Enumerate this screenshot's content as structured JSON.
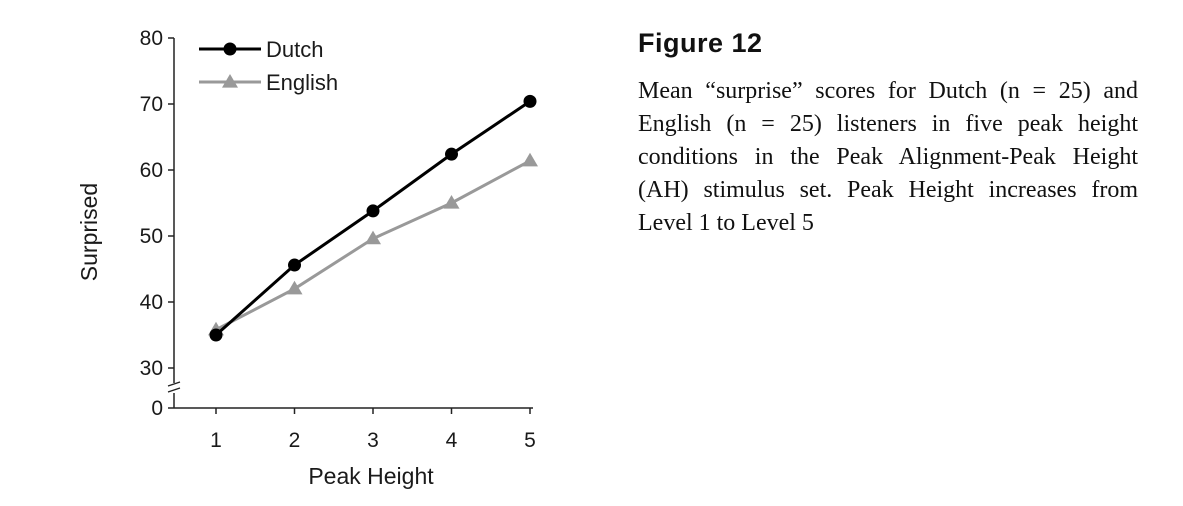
{
  "chart_data": {
    "type": "line",
    "xlabel": "Peak Height",
    "ylabel": "Surprised",
    "x": [
      1,
      2,
      3,
      4,
      5
    ],
    "xticks": [
      "1",
      "2",
      "3",
      "4",
      "5"
    ],
    "yticks": [
      "0",
      "30",
      "40",
      "50",
      "60",
      "70",
      "80"
    ],
    "ylim": [
      30,
      80
    ],
    "y_axis_break": true,
    "grid": false,
    "legend_position": "top-left",
    "series": [
      {
        "name": "Dutch",
        "values": [
          35.0,
          45.6,
          53.8,
          62.4,
          70.4
        ],
        "color": "#000000",
        "marker": "circle"
      },
      {
        "name": "English",
        "values": [
          35.8,
          42.0,
          49.6,
          55.0,
          61.4
        ],
        "color": "#999999",
        "marker": "triangle"
      }
    ]
  },
  "caption": {
    "title": "Figure 12",
    "text": "Mean “surprise” scores for Dutch (n = 25) and English (n = 25) listeners in five peak height conditions in the Peak Alignment-Peak Height (AH) stimulus set. Peak Height increases from Level 1 to Level 5"
  }
}
